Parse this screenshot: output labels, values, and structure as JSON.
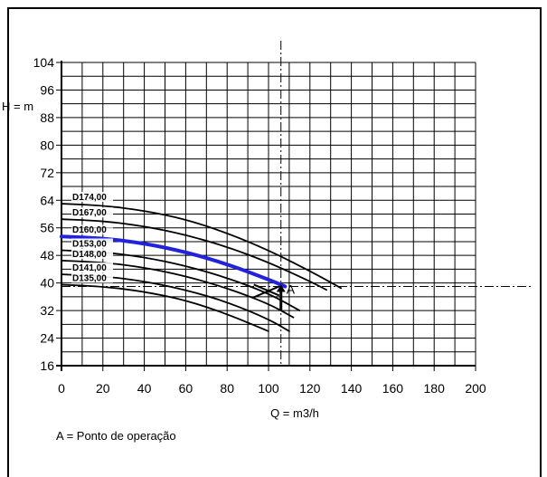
{
  "chart_data": {
    "type": "line",
    "xlabel": "Q = m3/h",
    "ylabel": "H = m",
    "xlim": [
      0,
      200
    ],
    "ylim": [
      16,
      104
    ],
    "x_ticks": [
      0,
      20,
      40,
      60,
      80,
      100,
      120,
      140,
      160,
      180,
      200
    ],
    "y_ticks": [
      16,
      24,
      32,
      40,
      48,
      56,
      64,
      72,
      80,
      88,
      96,
      104
    ],
    "grid": true,
    "highlight_color": "#2222dd",
    "curve_color": "#000000",
    "series": [
      {
        "name": "D174,00",
        "x": [
          0,
          20,
          40,
          60,
          80,
          100,
          120,
          135
        ],
        "y": [
          63,
          62.5,
          61,
          58.5,
          54.5,
          49.5,
          43.5,
          38.5
        ]
      },
      {
        "name": "D167,00",
        "x": [
          0,
          20,
          40,
          60,
          80,
          100,
          120,
          128
        ],
        "y": [
          58.5,
          58,
          56.5,
          54,
          50.5,
          46,
          40.5,
          38
        ]
      },
      {
        "name": "D160,00",
        "x": [
          0,
          20,
          40,
          60,
          80,
          100,
          108
        ],
        "y": [
          53.5,
          53,
          51.5,
          49,
          45.5,
          41,
          39
        ],
        "highlight": true
      },
      {
        "name": "D153,00",
        "x": [
          0,
          20,
          40,
          60,
          80,
          100,
          115
        ],
        "y": [
          49.5,
          49,
          47.5,
          45,
          41.5,
          37,
          32
        ]
      },
      {
        "name": "D148,00",
        "x": [
          0,
          20,
          40,
          60,
          80,
          100,
          112
        ],
        "y": [
          46.5,
          46,
          44.5,
          42,
          38.5,
          34,
          30
        ]
      },
      {
        "name": "D141,00",
        "x": [
          0,
          20,
          40,
          60,
          80,
          100,
          110
        ],
        "y": [
          42.5,
          42,
          40.5,
          38,
          34.5,
          29.5,
          26
        ]
      },
      {
        "name": "D135,00",
        "x": [
          0,
          20,
          40,
          60,
          80,
          100
        ],
        "y": [
          39.5,
          39,
          37.5,
          35,
          31,
          26
        ]
      }
    ],
    "operating_point": {
      "label": "A",
      "x": 106,
      "y": 39,
      "description": "A = Ponto de operação"
    }
  }
}
